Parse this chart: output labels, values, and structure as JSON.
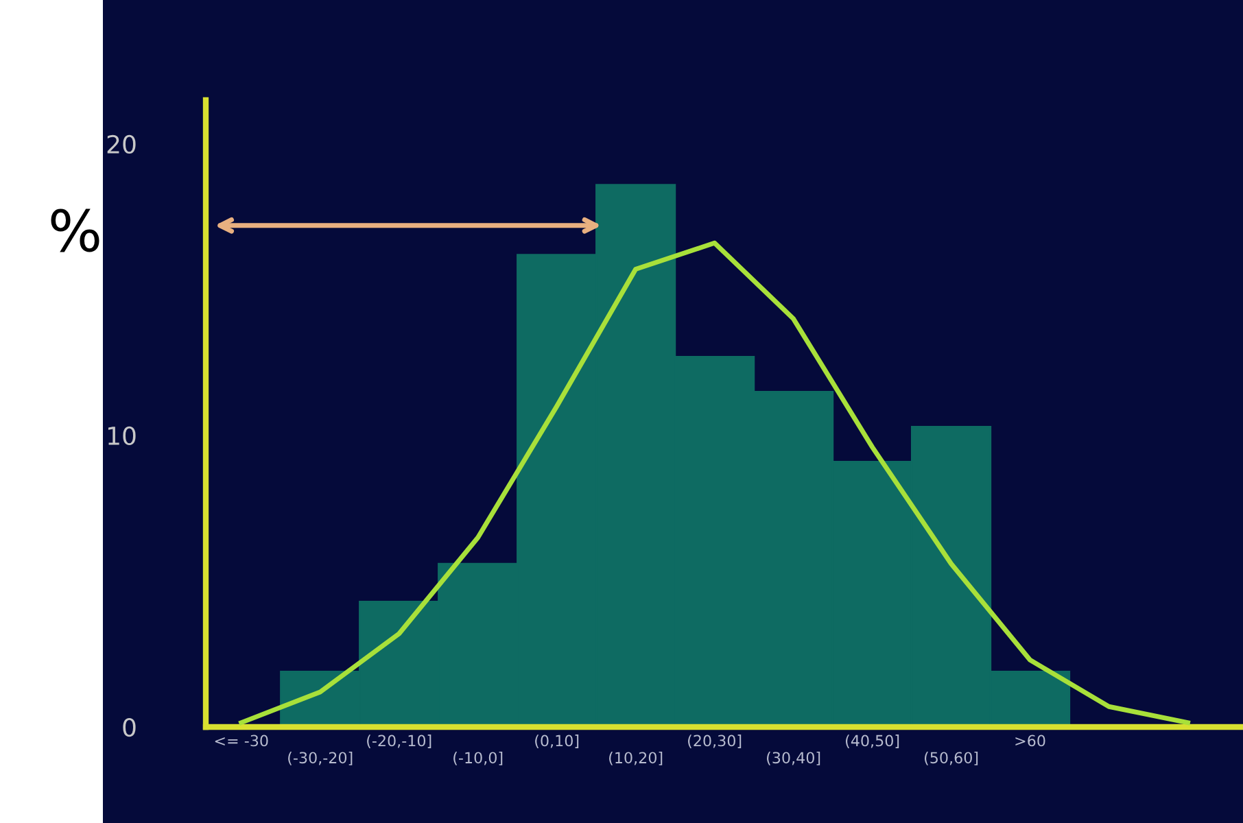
{
  "chart_data": {
    "type": "bar",
    "ylabel": "%",
    "categories": [
      "<= -30",
      "(-30,-20]",
      "(-20,-10]",
      "(-10,0]",
      "(0,10]",
      "(10,20]",
      "(20,30]",
      "(30,40]",
      "(40,50]",
      "(50,60]",
      ">60",
      null,
      null
    ],
    "series": [
      {
        "color": "#0e6b62",
        "values": [
          0,
          1.9,
          4.3,
          5.6,
          16.2,
          18.6,
          12.7,
          11.5,
          9.1,
          10.3,
          1.9,
          null,
          null
        ]
      },
      {
        "type": "line",
        "color": "#a8e03a",
        "values": [
          0.15,
          1.2,
          3.2,
          6.5,
          11.0,
          15.7,
          16.6,
          14.0,
          9.6,
          5.6,
          2.3,
          0.7,
          0.15
        ]
      }
    ],
    "ylim": [
      0,
      21.5
    ],
    "yticks": [
      0,
      10,
      20
    ],
    "grid": false
  }
}
